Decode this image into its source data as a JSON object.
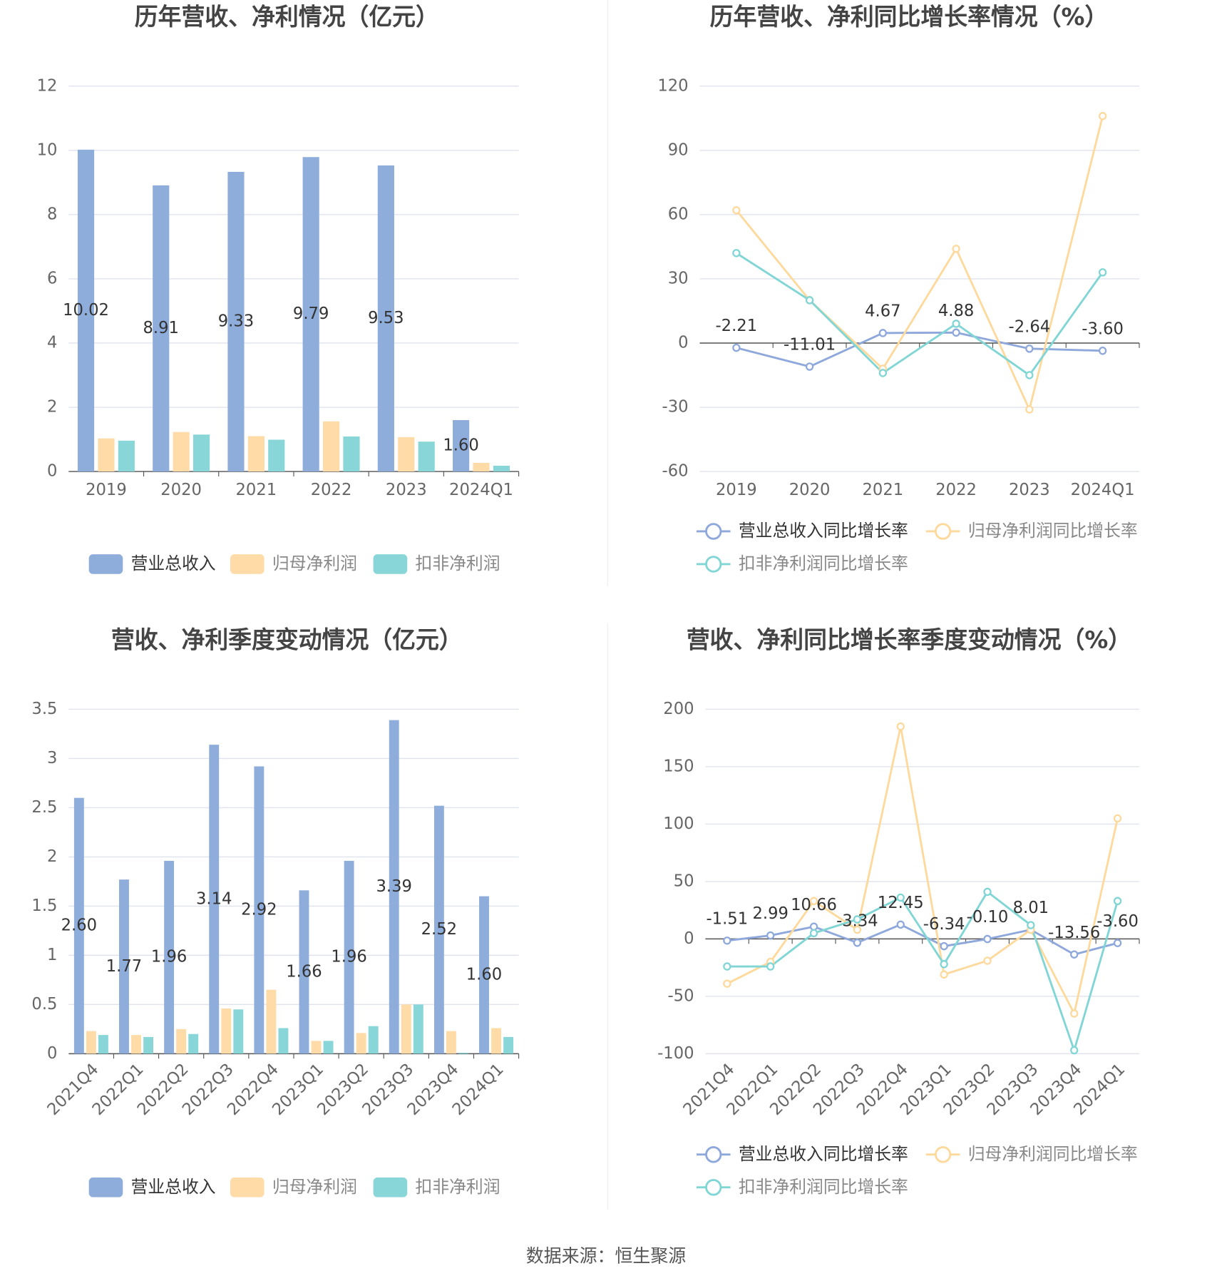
{
  "chart_data": [
    {
      "type": "bar",
      "title": "历年营收、净利情况（亿元）",
      "categories": [
        "2019",
        "2020",
        "2021",
        "2022",
        "2023",
        "2024Q1"
      ],
      "series": [
        {
          "name": "营业总收入",
          "color": "#8eaddb",
          "values": [
            10.02,
            8.91,
            9.33,
            9.79,
            9.53,
            1.6
          ],
          "value_labels": [
            "10.02",
            "8.91",
            "9.33",
            "9.79",
            "9.53",
            "1.60"
          ]
        },
        {
          "name": "归母净利润",
          "color": "#fedba7",
          "values": [
            1.03,
            1.23,
            1.1,
            1.56,
            1.07,
            0.27
          ]
        },
        {
          "name": "扣非净利润",
          "color": "#88d6d8",
          "values": [
            0.96,
            1.15,
            0.99,
            1.09,
            0.93,
            0.18
          ]
        }
      ],
      "ylim": [
        0,
        12
      ],
      "yticks": [
        0,
        2,
        4,
        6,
        8,
        10,
        12
      ],
      "grid": true
    },
    {
      "type": "line",
      "title": "历年营收、净利同比增长率情况（%）",
      "categories": [
        "2019",
        "2020",
        "2021",
        "2022",
        "2023",
        "2024Q1"
      ],
      "series": [
        {
          "name": "营业总收入同比增长率",
          "color": "#8ea8dc",
          "values": [
            -2.21,
            -11.01,
            4.67,
            4.88,
            -2.64,
            -3.6
          ],
          "value_labels": [
            "-2.21",
            "-11.01",
            "4.67",
            "4.88",
            "-2.64",
            "-3.60"
          ]
        },
        {
          "name": "归母净利润同比增长率",
          "color": "#fdd99c",
          "values": [
            62,
            20,
            -12,
            44,
            -31,
            106
          ]
        },
        {
          "name": "扣非净利润同比增长率",
          "color": "#80d5d5",
          "values": [
            42,
            20,
            -14,
            9,
            -15,
            33
          ]
        }
      ],
      "ylim": [
        -60,
        120
      ],
      "yticks": [
        -60,
        -30,
        0,
        30,
        60,
        90,
        120
      ],
      "grid": true
    },
    {
      "type": "bar",
      "title": "营收、净利季度变动情况（亿元）",
      "categories": [
        "2021Q4",
        "2022Q1",
        "2022Q2",
        "2022Q3",
        "2022Q4",
        "2023Q1",
        "2023Q2",
        "2023Q3",
        "2023Q4",
        "2024Q1"
      ],
      "series": [
        {
          "name": "营业总收入",
          "color": "#8eaddb",
          "values": [
            2.6,
            1.77,
            1.96,
            3.14,
            2.92,
            1.66,
            1.96,
            3.39,
            2.52,
            1.6
          ],
          "value_labels": [
            "2.60",
            "1.77",
            "1.96",
            "3.14",
            "2.92",
            "1.66",
            "1.96",
            "3.39",
            "2.52",
            "1.60"
          ]
        },
        {
          "name": "归母净利润",
          "color": "#fedba7",
          "values": [
            0.23,
            0.19,
            0.25,
            0.46,
            0.65,
            0.13,
            0.21,
            0.5,
            0.23,
            0.26
          ]
        },
        {
          "name": "扣非净利润",
          "color": "#88d6d8",
          "values": [
            0.19,
            0.17,
            0.2,
            0.45,
            0.26,
            0.13,
            0.28,
            0.5,
            0.01,
            0.17
          ]
        }
      ],
      "ylim": [
        0,
        3.5
      ],
      "yticks": [
        0,
        0.5,
        1,
        1.5,
        2,
        2.5,
        3,
        3.5
      ],
      "grid": true
    },
    {
      "type": "line",
      "title": "营收、净利同比增长率季度变动情况（%）",
      "categories": [
        "2021Q4",
        "2022Q1",
        "2022Q2",
        "2022Q3",
        "2022Q4",
        "2023Q1",
        "2023Q2",
        "2023Q3",
        "2023Q4",
        "2024Q1"
      ],
      "series": [
        {
          "name": "营业总收入同比增长率",
          "color": "#8ea8dc",
          "values": [
            -1.51,
            2.99,
            10.66,
            -3.34,
            12.45,
            -6.34,
            -0.1,
            8.01,
            -13.56,
            -3.6
          ],
          "value_labels": [
            "-1.51",
            "2.99",
            "10.66",
            "-3.34",
            "12.45",
            "-6.34",
            "-0.10",
            "8.01",
            "-13.56",
            "-3.60"
          ]
        },
        {
          "name": "归母净利润同比增长率",
          "color": "#fdd99c",
          "values": [
            -39,
            -20,
            33,
            8,
            185,
            -31,
            -19,
            8,
            -65,
            105
          ]
        },
        {
          "name": "扣非净利润同比增长率",
          "color": "#80d5d5",
          "values": [
            -24,
            -24,
            5,
            17,
            36,
            -22,
            41,
            12,
            -97,
            33
          ]
        }
      ],
      "ylim": [
        -100,
        200
      ],
      "yticks": [
        -100,
        -50,
        0,
        50,
        100,
        150,
        200
      ],
      "grid": true
    }
  ],
  "source": "数据来源：恒生聚源"
}
